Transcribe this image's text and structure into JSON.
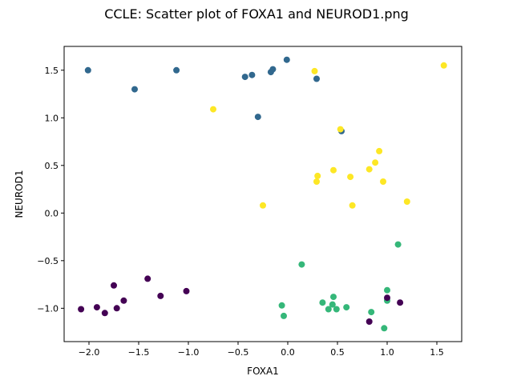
{
  "chart_data": {
    "type": "scatter",
    "title": "CCLE: Scatter plot of FOXA1 and NEUROD1.png",
    "xlabel": "FOXA1",
    "ylabel": "NEUROD1",
    "xlim": [
      -2.25,
      1.75
    ],
    "ylim": [
      -1.35,
      1.75
    ],
    "xticks": [
      -2.0,
      -1.5,
      -1.0,
      -0.5,
      0.0,
      0.5,
      1.0,
      1.5
    ],
    "xtick_labels": [
      "−2.0",
      "−1.5",
      "−1.0",
      "−0.5",
      "0.0",
      "0.5",
      "1.0",
      "1.5"
    ],
    "yticks": [
      -1.0,
      -0.5,
      0.0,
      0.5,
      1.0,
      1.5
    ],
    "yticks_labels": [
      "−1.0",
      "−0.5",
      "0.0",
      "0.5",
      "1.0",
      "1.5"
    ],
    "grid": false,
    "series": [
      {
        "color": "#31688e",
        "points": [
          [
            -2.01,
            1.5
          ],
          [
            -1.54,
            1.3
          ],
          [
            -1.12,
            1.5
          ],
          [
            -0.43,
            1.43
          ],
          [
            -0.36,
            1.45
          ],
          [
            -0.3,
            1.01
          ],
          [
            -0.17,
            1.48
          ],
          [
            -0.15,
            1.51
          ],
          [
            -0.01,
            1.61
          ],
          [
            0.29,
            1.41
          ],
          [
            0.54,
            0.86
          ]
        ]
      },
      {
        "color": "#fde725",
        "points": [
          [
            -0.75,
            1.09
          ],
          [
            -0.25,
            0.08
          ],
          [
            0.27,
            1.49
          ],
          [
            0.29,
            0.33
          ],
          [
            0.3,
            0.39
          ],
          [
            0.46,
            0.45
          ],
          [
            0.53,
            0.88
          ],
          [
            0.63,
            0.38
          ],
          [
            0.65,
            0.08
          ],
          [
            0.82,
            0.46
          ],
          [
            0.88,
            0.53
          ],
          [
            0.92,
            0.65
          ],
          [
            0.96,
            0.33
          ],
          [
            1.2,
            0.12
          ],
          [
            1.57,
            1.55
          ]
        ]
      },
      {
        "color": "#35b779",
        "points": [
          [
            -0.06,
            -0.97
          ],
          [
            -0.04,
            -1.08
          ],
          [
            0.14,
            -0.54
          ],
          [
            0.35,
            -0.94
          ],
          [
            0.41,
            -1.01
          ],
          [
            0.45,
            -0.96
          ],
          [
            0.46,
            -0.88
          ],
          [
            0.49,
            -1.01
          ],
          [
            0.59,
            -0.99
          ],
          [
            0.84,
            -1.04
          ],
          [
            0.97,
            -1.21
          ],
          [
            1.0,
            -0.81
          ],
          [
            1.0,
            -0.92
          ],
          [
            1.11,
            -0.33
          ]
        ]
      },
      {
        "color": "#440154",
        "points": [
          [
            -2.08,
            -1.01
          ],
          [
            -1.92,
            -0.99
          ],
          [
            -1.84,
            -1.05
          ],
          [
            -1.75,
            -0.76
          ],
          [
            -1.72,
            -1.0
          ],
          [
            -1.65,
            -0.92
          ],
          [
            -1.41,
            -0.69
          ],
          [
            -1.28,
            -0.87
          ],
          [
            -1.02,
            -0.82
          ],
          [
            0.82,
            -1.14
          ],
          [
            1.0,
            -0.89
          ],
          [
            1.13,
            -0.94
          ]
        ]
      }
    ]
  }
}
